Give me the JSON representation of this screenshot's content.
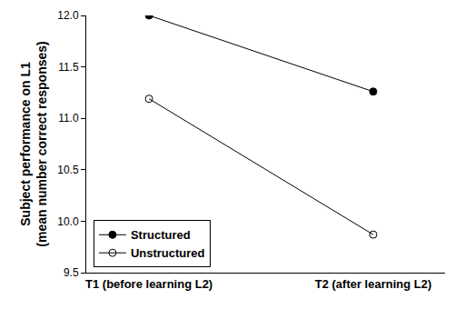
{
  "chart_data": {
    "type": "line",
    "y_label": "Subject performance on L1\n(mean number correct responses)",
    "categories": [
      "T1 (before learning L2)",
      "T2 (after learning L2)"
    ],
    "series": [
      {
        "name": "Structured",
        "color": "#000000",
        "marker": "circle",
        "line_style": "solid",
        "values": [
          12.0,
          11.26
        ]
      },
      {
        "name": "Unstructured",
        "color": "#000000",
        "marker": "circle-open",
        "line_style": "solid",
        "values": [
          11.19,
          9.87
        ]
      }
    ],
    "ylim": [
      9.5,
      12.0
    ],
    "yticks": [
      9.5,
      {
        "value": 10,
        "label": "10.0"
      },
      10.5,
      {
        "value": 11,
        "label": "11.0"
      },
      11.5,
      {
        "value": 12,
        "label": "12.0"
      }
    ],
    "grid": false,
    "legend": "lower left"
  }
}
